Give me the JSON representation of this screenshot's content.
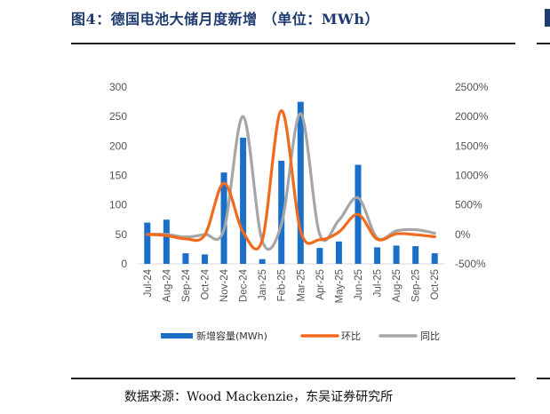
{
  "figure": {
    "title": "图4：德国电池大储月度新增 （单位：MWh）",
    "source": "数据来源：Wood Mackenzie，东吴证券研究所"
  },
  "chart_data": {
    "type": "bar",
    "categories": [
      "Jul-24",
      "Aug-24",
      "Sep-24",
      "Oct-24",
      "Nov-24",
      "Dec-24",
      "Jan-25",
      "Feb-25",
      "Mar-25",
      "Apr-25",
      "May-25",
      "Jun-25",
      "Jul-25",
      "Aug-25",
      "Sep-25",
      "Oct-25"
    ],
    "series": [
      {
        "name": "新增容量(MWh)",
        "kind": "bar",
        "axis": "left",
        "color": "#1a6fc9",
        "values": [
          70,
          75,
          18,
          16,
          155,
          214,
          8,
          175,
          275,
          27,
          38,
          168,
          28,
          31,
          30,
          18
        ]
      },
      {
        "name": "环比",
        "kind": "line",
        "axis": "right",
        "color": "#f26a1b",
        "values": [
          0.0,
          -20,
          -75,
          -12,
          870,
          40,
          -96,
          2100,
          57,
          -90,
          40,
          340,
          -83,
          10,
          -5,
          -40
        ]
      },
      {
        "name": "同比",
        "kind": "line",
        "axis": "right",
        "color": "#a6a6a6",
        "values": [
          0,
          0,
          -45,
          0,
          80,
          2000,
          -110,
          170,
          2050,
          0,
          240,
          620,
          -60,
          60,
          80,
          20
        ]
      }
    ],
    "y_left": {
      "ticks": [
        "0",
        "50",
        "100",
        "150",
        "200",
        "250",
        "300"
      ],
      "range": [
        0,
        300
      ]
    },
    "y_right": {
      "ticks": [
        "-500%",
        "0%",
        "500%",
        "1000%",
        "1500%",
        "2000%",
        "2500%"
      ],
      "range": [
        -500,
        2500
      ]
    },
    "legend": {
      "position": "bottom"
    },
    "grid": false
  }
}
